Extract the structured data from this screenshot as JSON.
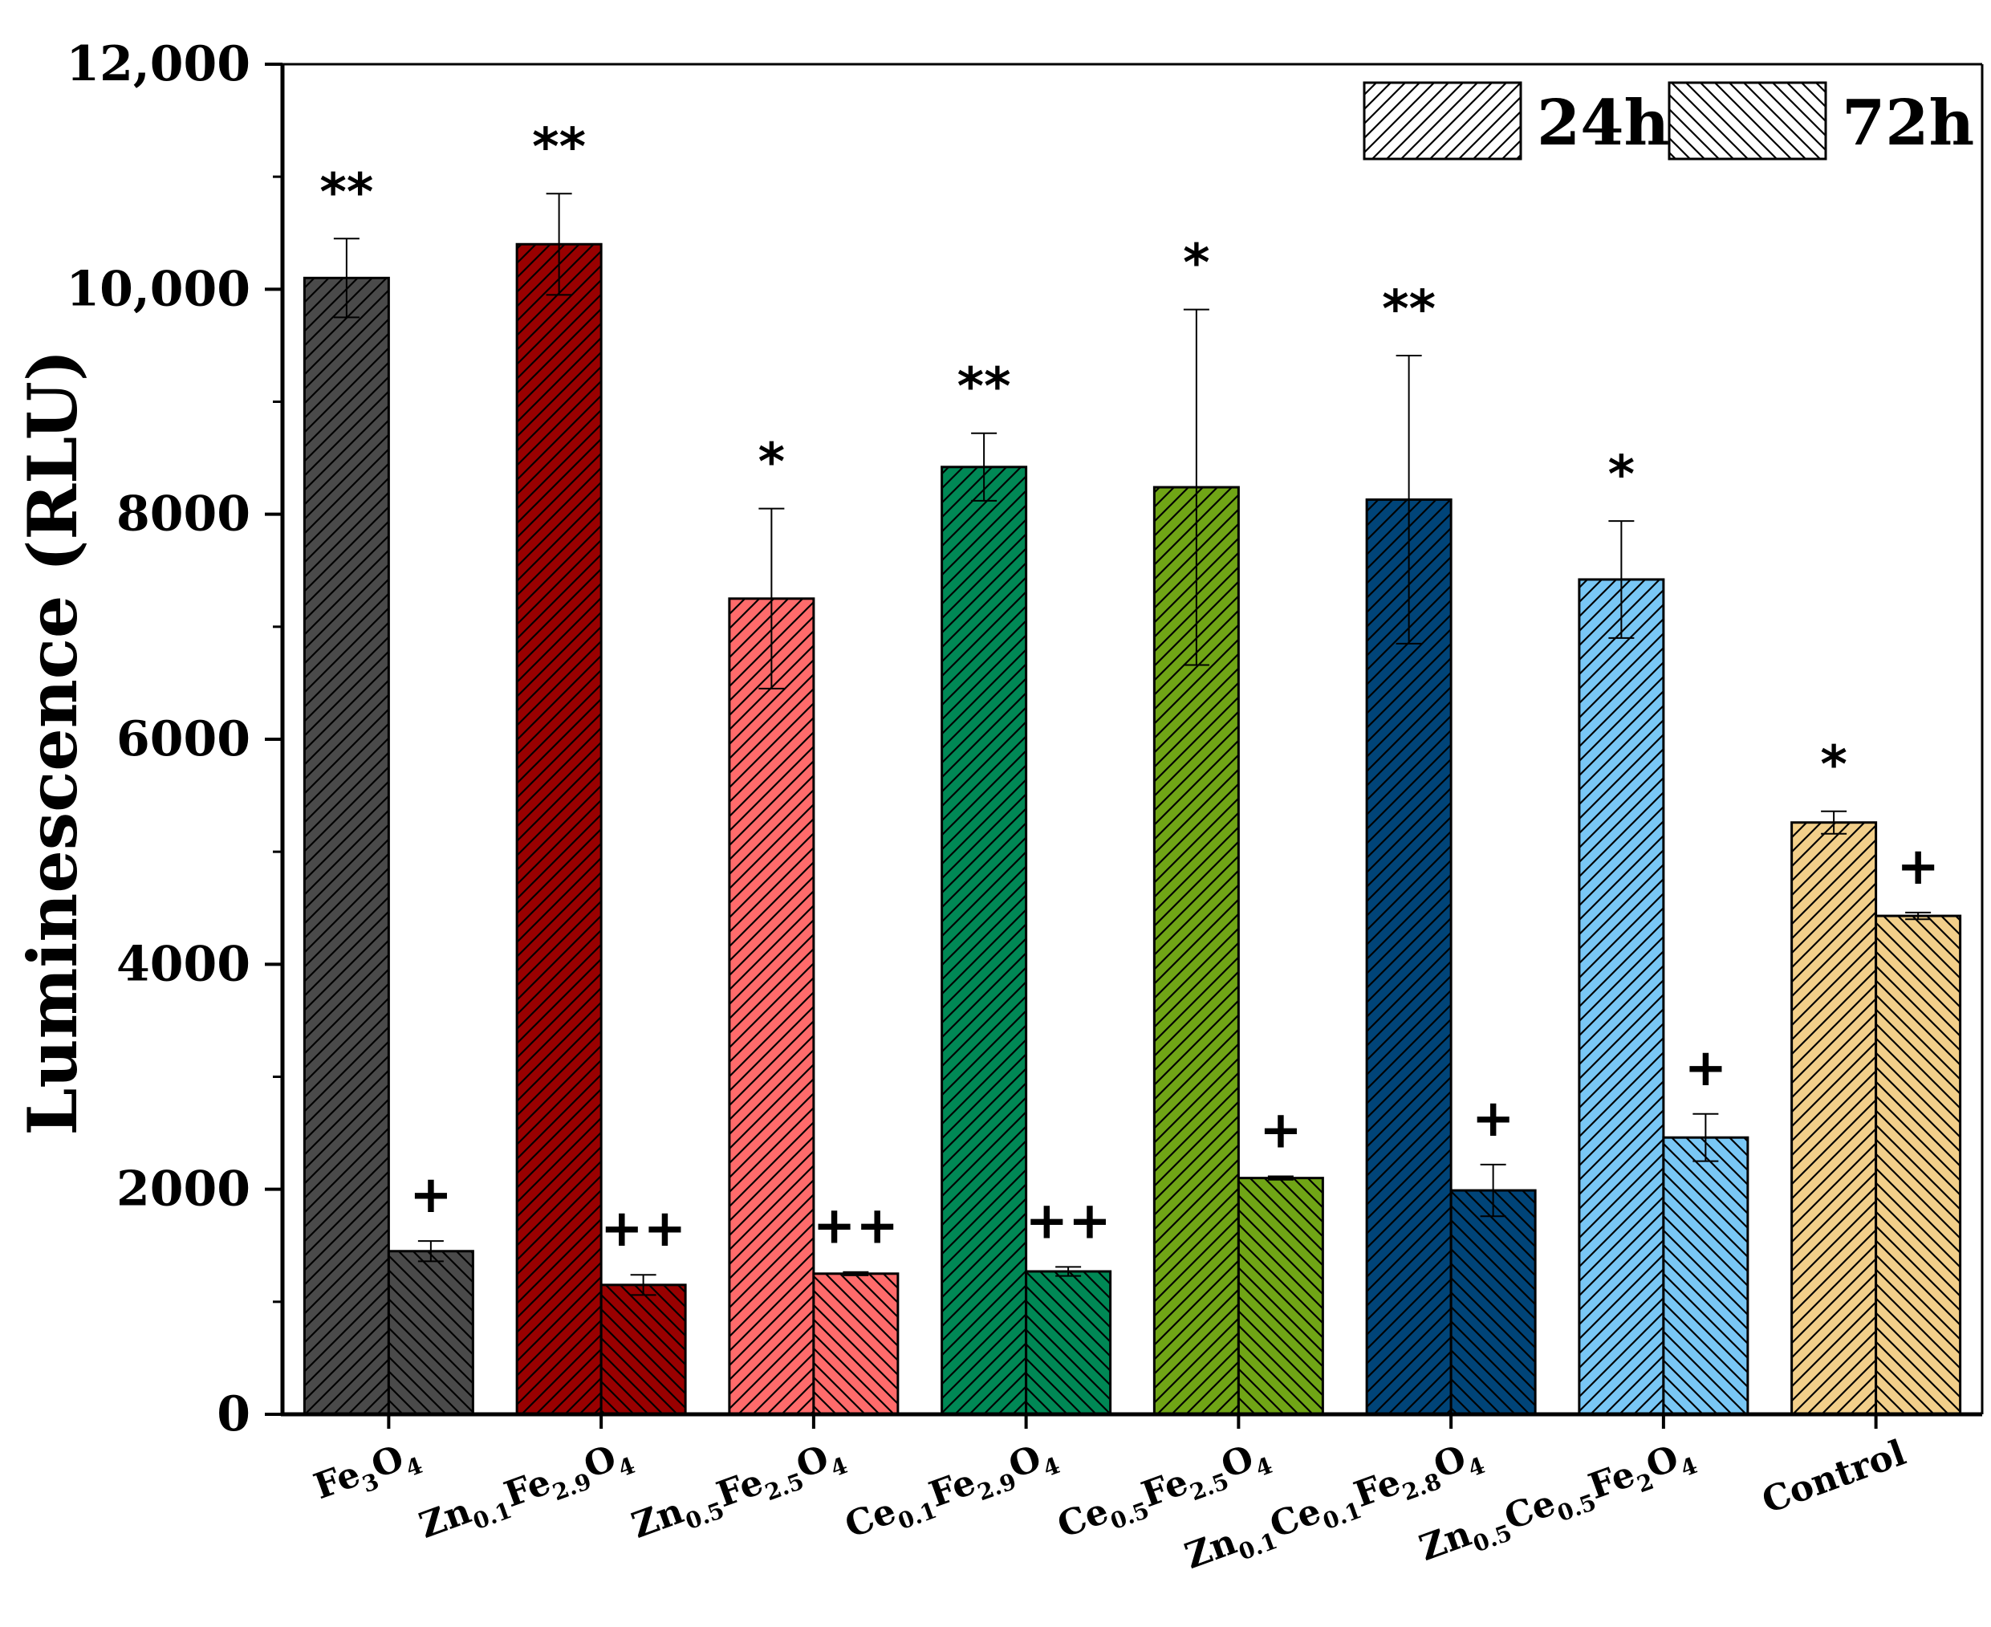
{
  "chart_data": {
    "type": "bar",
    "ylabel": "Luminescence (RLU)",
    "xlabel": "",
    "ylim": [
      0,
      12000
    ],
    "yticks": [
      0,
      2000,
      4000,
      6000,
      8000,
      10000,
      12000
    ],
    "ytick_labels": [
      "0",
      "2000",
      "4000",
      "6000",
      "8000",
      "10,000",
      "12,000"
    ],
    "grid": false,
    "legend_position": "top-right",
    "categories": [
      {
        "main": [
          [
            "Fe",
            "n"
          ],
          [
            "3",
            "s"
          ],
          [
            "O",
            "n"
          ],
          [
            "4",
            "s"
          ]
        ]
      },
      {
        "main": [
          [
            "Zn",
            "n"
          ],
          [
            "0.1",
            "s"
          ],
          [
            "Fe",
            "n"
          ],
          [
            "2.9",
            "s"
          ],
          [
            "O",
            "n"
          ],
          [
            "4",
            "s"
          ]
        ]
      },
      {
        "main": [
          [
            "Zn",
            "n"
          ],
          [
            "0.5",
            "s"
          ],
          [
            "Fe",
            "n"
          ],
          [
            "2.5",
            "s"
          ],
          [
            "O",
            "n"
          ],
          [
            "4",
            "s"
          ]
        ]
      },
      {
        "main": [
          [
            "Ce",
            "n"
          ],
          [
            "0.1",
            "s"
          ],
          [
            "Fe",
            "n"
          ],
          [
            "2.9",
            "s"
          ],
          [
            "O",
            "n"
          ],
          [
            "4",
            "s"
          ]
        ]
      },
      {
        "main": [
          [
            "Ce",
            "n"
          ],
          [
            "0.5",
            "s"
          ],
          [
            "Fe",
            "n"
          ],
          [
            "2.5",
            "s"
          ],
          [
            "O",
            "n"
          ],
          [
            "4",
            "s"
          ]
        ]
      },
      {
        "main": [
          [
            "Zn",
            "n"
          ],
          [
            "0.1",
            "s"
          ],
          [
            "Ce",
            "n"
          ],
          [
            "0.1",
            "s"
          ],
          [
            "Fe",
            "n"
          ],
          [
            "2.8",
            "s"
          ],
          [
            "O",
            "n"
          ],
          [
            "4",
            "s"
          ]
        ]
      },
      {
        "main": [
          [
            "Zn",
            "n"
          ],
          [
            "0.5",
            "s"
          ],
          [
            "Ce",
            "n"
          ],
          [
            "0.5",
            "s"
          ],
          [
            "Fe",
            "n"
          ],
          [
            "2",
            "s"
          ],
          [
            "O",
            "n"
          ],
          [
            "4",
            "s"
          ]
        ]
      },
      {
        "main": [
          [
            "Control",
            "n"
          ]
        ]
      }
    ],
    "colors": [
      "#4a4a4a",
      "#990000",
      "#ff6b6b",
      "#008855",
      "#70a516",
      "#004478",
      "#79c7f5",
      "#f2cf8a"
    ],
    "series": [
      {
        "name": "24h",
        "hatch": "forward",
        "values": [
          10100,
          10400,
          7250,
          8420,
          8240,
          8130,
          7420,
          5260
        ],
        "errors": [
          350,
          450,
          800,
          300,
          1580,
          1280,
          520,
          100
        ],
        "significance": [
          "**",
          "**",
          "*",
          "**",
          "*",
          "**",
          "*",
          "*"
        ]
      },
      {
        "name": "72h",
        "hatch": "backward",
        "values": [
          1450,
          1150,
          1250,
          1270,
          2100,
          1990,
          2460,
          4430
        ],
        "errors": [
          90,
          90,
          15,
          40,
          15,
          230,
          210,
          30
        ],
        "significance": [
          "+",
          "++",
          "++",
          "++",
          "+",
          "+",
          "+",
          "+"
        ]
      }
    ]
  }
}
